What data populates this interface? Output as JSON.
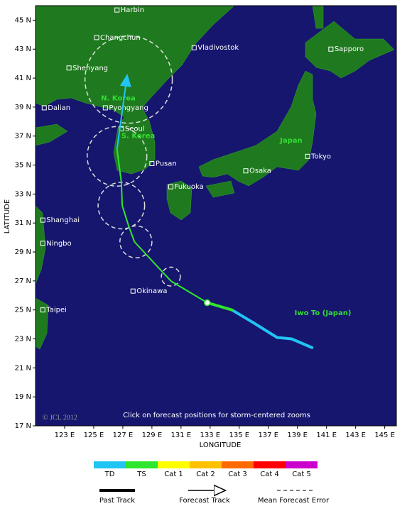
{
  "map": {
    "lon_range": [
      121,
      145.8
    ],
    "lat_range": [
      17,
      46
    ],
    "lon_ticks": [
      {
        "value": 123,
        "label": "123 E"
      },
      {
        "value": 125,
        "label": "125 E"
      },
      {
        "value": 127,
        "label": "127 E"
      },
      {
        "value": 129,
        "label": "129 E"
      },
      {
        "value": 131,
        "label": "131 E"
      },
      {
        "value": 133,
        "label": "133 E"
      },
      {
        "value": 135,
        "label": "135 E"
      },
      {
        "value": 137,
        "label": "137 E"
      },
      {
        "value": 139,
        "label": "139 E"
      },
      {
        "value": 141,
        "label": "141 E"
      },
      {
        "value": 143,
        "label": "143 E"
      },
      {
        "value": 145,
        "label": "145 E"
      }
    ],
    "lat_ticks": [
      {
        "value": 17,
        "label": "17 N"
      },
      {
        "value": 19,
        "label": "19 N"
      },
      {
        "value": 21,
        "label": "21 N"
      },
      {
        "value": 23,
        "label": "23 N"
      },
      {
        "value": 25,
        "label": "25 N"
      },
      {
        "value": 27,
        "label": "27 N"
      },
      {
        "value": 29,
        "label": "29 N"
      },
      {
        "value": 31,
        "label": "31 N"
      },
      {
        "value": 33,
        "label": "33 N"
      },
      {
        "value": 35,
        "label": "35 N"
      },
      {
        "value": 37,
        "label": "37 N"
      },
      {
        "value": 39,
        "label": "39 N"
      },
      {
        "value": 41,
        "label": "41 N"
      },
      {
        "value": 43,
        "label": "43 N"
      },
      {
        "value": 45,
        "label": "45 N"
      }
    ],
    "x_axis_label": "LONGITUDE",
    "y_axis_label": "LATITUDE",
    "cities": [
      {
        "name": "Harbin",
        "lon": 126.6,
        "lat": 45.7
      },
      {
        "name": "Changchun",
        "lon": 125.2,
        "lat": 43.8
      },
      {
        "name": "Vladivostok",
        "lon": 131.9,
        "lat": 43.1
      },
      {
        "name": "Sapporo",
        "lon": 141.3,
        "lat": 43.0
      },
      {
        "name": "Shenyang",
        "lon": 123.3,
        "lat": 41.7
      },
      {
        "name": "Dalian",
        "lon": 121.6,
        "lat": 38.95
      },
      {
        "name": "Pyongyang",
        "lon": 125.8,
        "lat": 38.95
      },
      {
        "name": "Seoul",
        "lon": 126.9,
        "lat": 37.5
      },
      {
        "name": "Pusan",
        "lon": 129.0,
        "lat": 35.1
      },
      {
        "name": "Tokyo",
        "lon": 139.7,
        "lat": 35.6
      },
      {
        "name": "Osaka",
        "lon": 135.45,
        "lat": 34.6
      },
      {
        "name": "Fukuoka",
        "lon": 130.3,
        "lat": 33.5
      },
      {
        "name": "Shanghai",
        "lon": 121.5,
        "lat": 31.2
      },
      {
        "name": "Ningbo",
        "lon": 121.5,
        "lat": 29.6
      },
      {
        "name": "Okinawa",
        "lon": 127.7,
        "lat": 26.3
      },
      {
        "name": "Taipei",
        "lon": 121.5,
        "lat": 25.0
      }
    ],
    "region_labels": [
      {
        "text": "N. Korea",
        "lon": 125.5,
        "lat": 39.6,
        "color": "#33dd33"
      },
      {
        "text": "S. Korea",
        "lon": 126.9,
        "lat": 37.0,
        "color": "#33dd33"
      },
      {
        "text": "Japan",
        "lon": 137.8,
        "lat": 36.7,
        "color": "#33dd33"
      },
      {
        "text": "Iwo To (Japan)",
        "lon": 138.8,
        "lat": 24.8,
        "color": "#33dd33"
      }
    ],
    "past_track": [
      {
        "lon": 140.0,
        "lat": 22.4,
        "category": "TD"
      },
      {
        "lon": 138.6,
        "lat": 23.0,
        "category": "TD"
      },
      {
        "lon": 137.6,
        "lat": 23.1,
        "category": "TD"
      },
      {
        "lon": 136.0,
        "lat": 24.1,
        "category": "TD"
      },
      {
        "lon": 134.5,
        "lat": 25.0,
        "category": "TD"
      },
      {
        "lon": 132.8,
        "lat": 25.5,
        "category": "TS"
      }
    ],
    "forecast_track": [
      {
        "lon": 130.3,
        "lat": 27.0,
        "category": "TS"
      },
      {
        "lon": 127.8,
        "lat": 29.7,
        "category": "TS"
      },
      {
        "lon": 127.4,
        "lat": 30.8,
        "category": "TS"
      },
      {
        "lon": 126.96,
        "lat": 32.2,
        "category": "TS"
      },
      {
        "lon": 126.9,
        "lat": 33.8,
        "category": "TS"
      },
      {
        "lon": 126.6,
        "lat": 36.1,
        "category": "TS"
      },
      {
        "lon": 127.3,
        "lat": 41.2,
        "category": "TD"
      }
    ],
    "error_circles": [
      {
        "lon": 130.3,
        "lat": 27.3,
        "radius": 0.65
      },
      {
        "lon": 127.9,
        "lat": 29.7,
        "radius": 1.1
      },
      {
        "lon": 126.9,
        "lat": 32.2,
        "radius": 1.6
      },
      {
        "lon": 126.6,
        "lat": 35.6,
        "radius": 2.05
      },
      {
        "lon": 127.4,
        "lat": 40.9,
        "radius": 3.0
      }
    ],
    "note": "Click on forecast positions for storm-centered zooms",
    "copyright": "© JCL 2012"
  },
  "legend": {
    "categories": [
      {
        "label": "TD",
        "color": "#21c5f3"
      },
      {
        "label": "TS",
        "color": "#2ee62e"
      },
      {
        "label": "Cat 1",
        "color": "#ffff00"
      },
      {
        "label": "Cat 2",
        "color": "#ffc000"
      },
      {
        "label": "Cat 3",
        "color": "#ff6a00"
      },
      {
        "label": "Cat 4",
        "color": "#ff0000"
      },
      {
        "label": "Cat 5",
        "color": "#cc00cc"
      }
    ],
    "lines": [
      "Past Track",
      "Forecast Track",
      "Mean Forecast Error"
    ]
  }
}
